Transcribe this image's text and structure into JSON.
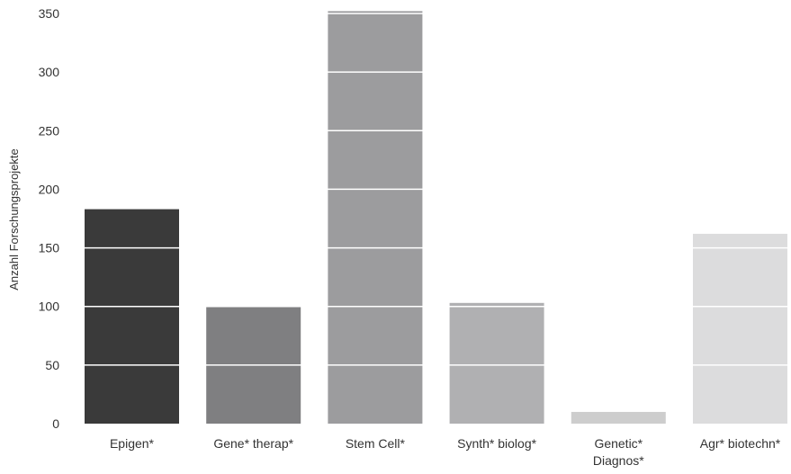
{
  "chart_data": {
    "type": "bar",
    "title": "",
    "xlabel": "",
    "ylabel": "Anzahl Forschungsprojekte",
    "ylim": [
      0,
      350
    ],
    "yticks": [
      0,
      50,
      100,
      150,
      200,
      250,
      300,
      350
    ],
    "grid": "horizontal white lines drawn over bars",
    "categories": [
      [
        "Epigen*"
      ],
      [
        "Gene* therap*"
      ],
      [
        "Stem Cell*"
      ],
      [
        "Synth* biolog*"
      ],
      [
        "Genetic*",
        "Diagnos*"
      ],
      [
        "Agr* biotechn*"
      ]
    ],
    "values": [
      183,
      100,
      352,
      103,
      10,
      162
    ],
    "colors": [
      "#3a3a3a",
      "#7f7f81",
      "#9c9c9e",
      "#b0b0b2",
      "#cdcdcd",
      "#dcdcdd"
    ]
  }
}
